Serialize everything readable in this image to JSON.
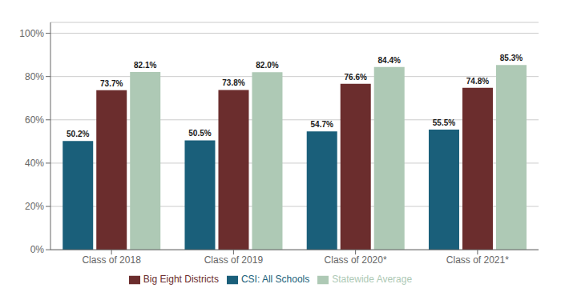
{
  "chart_data": {
    "type": "bar",
    "categories": [
      "Class of 2018",
      "Class of 2019",
      "Class of 2020*",
      "Class of 2021*"
    ],
    "series": [
      {
        "name": "CSI: All Schools",
        "color": "#1a5f7a",
        "values": [
          50.2,
          50.5,
          54.7,
          55.5
        ],
        "value_labels": [
          "50.2%",
          "50.5%",
          "54.7%",
          "55.5%"
        ]
      },
      {
        "name": "Big Eight Districts",
        "color": "#6b2d2d",
        "values": [
          73.7,
          73.8,
          76.6,
          74.8
        ],
        "value_labels": [
          "73.7%",
          "73.8%",
          "76.6%",
          "74.8%"
        ]
      },
      {
        "name": "Statewide Average",
        "color": "#aec9b5",
        "values": [
          82.1,
          82.0,
          84.4,
          85.3
        ],
        "value_labels": [
          "82.1%",
          "82.0%",
          "84.4%",
          "85.3%"
        ]
      }
    ],
    "ylim": [
      0,
      105
    ],
    "yticks": [
      {
        "value": 0,
        "label": "0%"
      },
      {
        "value": 20,
        "label": "20%"
      },
      {
        "value": 40,
        "label": "40%"
      },
      {
        "value": 60,
        "label": "60%"
      },
      {
        "value": 80,
        "label": "80%"
      },
      {
        "value": 100,
        "label": "100%"
      }
    ],
    "grid": true,
    "legend": "bottom",
    "data_labels": true
  }
}
